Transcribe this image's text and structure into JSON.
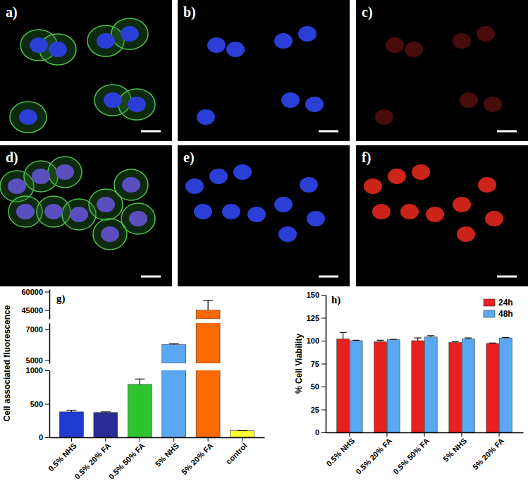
{
  "panels": [
    {
      "label": "a)"
    },
    {
      "label": "b)"
    },
    {
      "label": "c)"
    },
    {
      "label": "d)"
    },
    {
      "label": "e)"
    },
    {
      "label": "f)"
    }
  ],
  "chart_data": [
    {
      "type": "bar",
      "panel_label": "g)",
      "y_label": "Cell associated fluorescence",
      "categories": [
        "0.5% NHS",
        "0.5% 20% FA",
        "0.5% 50% FA",
        "5% NHS",
        "5% 20% FA",
        "control"
      ],
      "values": [
        380,
        370,
        790,
        6000,
        45000,
        100
      ],
      "errors": [
        25,
        10,
        80,
        60,
        8000,
        0
      ],
      "colors": [
        "#1f3ccf",
        "#2b2b96",
        "#2fc42f",
        "#5aa8f2",
        "#ff6a00",
        "#ffff33"
      ],
      "y_segments": [
        {
          "ylim": [
            0,
            1000
          ],
          "yticks": [
            0,
            500,
            1000
          ]
        },
        {
          "ylim": [
            4800,
            7400
          ],
          "yticks": [
            5000,
            7000
          ]
        },
        {
          "ylim": [
            38000,
            62000
          ],
          "yticks": [
            45000,
            60000
          ]
        }
      ]
    },
    {
      "type": "bar",
      "panel_label": "h)",
      "y_label": "% Cell Viability",
      "categories": [
        "0.5% NHS",
        "0.5% 20% FA",
        "0.5% 50% FA",
        "5% NHS",
        "5% 20% FA"
      ],
      "series": [
        {
          "name": "24h",
          "color": "#e8201f",
          "values": [
            102,
            99,
            100,
            98,
            97
          ],
          "errors": [
            7,
            1.5,
            3,
            1,
            0.5
          ]
        },
        {
          "name": "48h",
          "color": "#5aa8f2",
          "values": [
            100,
            101,
            104,
            102,
            103
          ],
          "errors": [
            0.5,
            0.5,
            1.5,
            1,
            0.5
          ]
        }
      ],
      "ylim": [
        0,
        150
      ],
      "yticks": [
        0,
        25,
        50,
        75,
        100,
        125,
        150
      ],
      "legend": "top-right"
    }
  ]
}
